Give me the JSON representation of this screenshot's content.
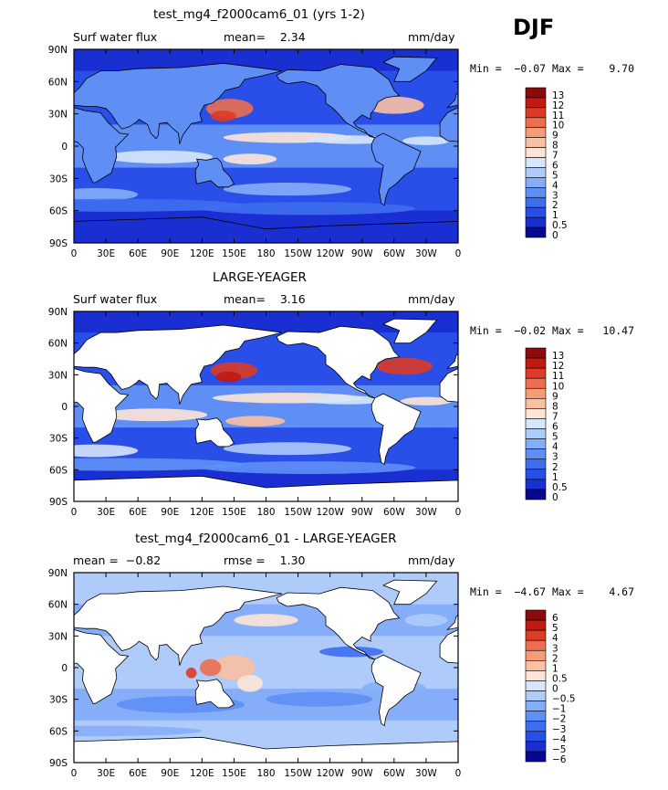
{
  "season": "DJF",
  "colors": {
    "land_fill": "#ffffff",
    "scale_13": [
      "#08088e",
      "#1a2fd2",
      "#2a4ee8",
      "#3e6ef0",
      "#5f8ff5",
      "#86aef8",
      "#aecbfa",
      "#d6e6fc",
      "#fde4d6",
      "#f9c0a3",
      "#f49b78",
      "#ec6e4f",
      "#dd3b26",
      "#c11a10",
      "#8c0a0a"
    ],
    "scale_diff": [
      "#08088e",
      "#1a2fd2",
      "#2a4ee8",
      "#3e6ef0",
      "#5f8ff5",
      "#86aef8",
      "#aecbfa",
      "#d6e6fc",
      "#fde4d6",
      "#f9c0a3",
      "#f49b78",
      "#ec6e4f",
      "#dd3b26",
      "#c11a10",
      "#8c0a0a"
    ]
  },
  "panels": [
    {
      "title": "test_mg4_f2000cam6_01 (yrs 1-2)",
      "left_label": "Surf water flux",
      "stat_text": "mean=    2.34",
      "units": "mm/day",
      "minmax": "Min =  −0.07 Max =    9.70",
      "cb_labels": [
        "13",
        "12",
        "11",
        "10",
        "9",
        "8",
        "7",
        "6",
        "5",
        "4",
        "3",
        "2",
        "1",
        "0.5",
        "0"
      ],
      "bg_color": "#2a4ee8",
      "land_style": "filled"
    },
    {
      "title": "LARGE-YEAGER",
      "left_label": "Surf water flux",
      "stat_text": "mean=    3.16",
      "units": "mm/day",
      "minmax": "Min =  −0.02 Max =   10.47",
      "cb_labels": [
        "13",
        "12",
        "11",
        "10",
        "9",
        "8",
        "7",
        "6",
        "5",
        "4",
        "3",
        "2",
        "1",
        "0.5",
        "0"
      ],
      "bg_color": "#2a4ee8",
      "land_style": "blank"
    },
    {
      "title": "test_mg4_f2000cam6_01 - LARGE-YEAGER",
      "left_label": "mean =  −0.82",
      "stat_text": "rmse =    1.30",
      "units": "mm/day",
      "minmax": "Min =  −4.67 Max =    4.67",
      "cb_labels": [
        "6",
        "5",
        "4",
        "3",
        "2",
        "1",
        "0.5",
        "0",
        "−0.5",
        "−1",
        "−2",
        "−3",
        "−4",
        "−5",
        "−6"
      ],
      "bg_color": "#d6e6fc",
      "land_style": "blank"
    }
  ],
  "axes": {
    "x_ticks": [
      "0",
      "30E",
      "60E",
      "90E",
      "120E",
      "150E",
      "180",
      "150W",
      "120W",
      "90W",
      "60W",
      "30W",
      "0"
    ],
    "y_ticks": [
      "90N",
      "60N",
      "30N",
      "0",
      "30S",
      "60S",
      "90S"
    ]
  },
  "chart_data": [
    {
      "type": "heatmap",
      "title": "test_mg4_f2000cam6_01 (yrs 1-2)",
      "variable": "Surf water flux",
      "units": "mm/day",
      "mean": 2.34,
      "min": -0.07,
      "max": 9.7,
      "levels": [
        0,
        0.5,
        1,
        2,
        3,
        4,
        5,
        6,
        7,
        8,
        9,
        10,
        11,
        12,
        13
      ],
      "x_range": [
        0,
        360
      ],
      "y_range": [
        -90,
        90
      ]
    },
    {
      "type": "heatmap",
      "title": "LARGE-YEAGER",
      "variable": "Surf water flux",
      "units": "mm/day",
      "mean": 3.16,
      "min": -0.02,
      "max": 10.47,
      "levels": [
        0,
        0.5,
        1,
        2,
        3,
        4,
        5,
        6,
        7,
        8,
        9,
        10,
        11,
        12,
        13
      ],
      "x_range": [
        0,
        360
      ],
      "y_range": [
        -90,
        90
      ]
    },
    {
      "type": "heatmap",
      "title": "test_mg4_f2000cam6_01 - LARGE-YEAGER",
      "units": "mm/day",
      "mean": -0.82,
      "rmse": 1.3,
      "min": -4.67,
      "max": 4.67,
      "levels": [
        -6,
        -5,
        -4,
        -3,
        -2,
        -1,
        -0.5,
        0,
        0.5,
        1,
        2,
        3,
        4,
        5,
        6
      ],
      "x_range": [
        0,
        360
      ],
      "y_range": [
        -90,
        90
      ]
    }
  ]
}
